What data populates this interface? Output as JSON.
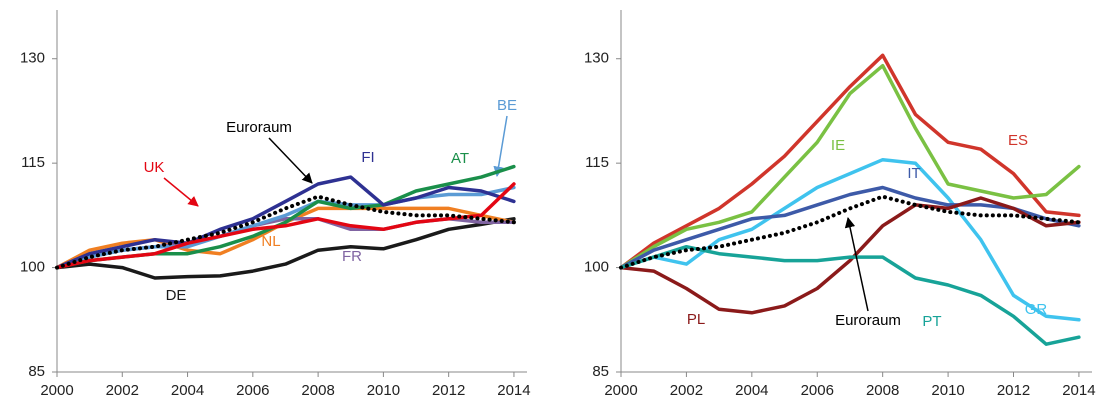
{
  "chart_data": [
    {
      "type": "line",
      "x": [
        2000,
        2001,
        2002,
        2003,
        2004,
        2005,
        2006,
        2007,
        2008,
        2009,
        2010,
        2011,
        2012,
        2013,
        2014
      ],
      "xlim": [
        2000,
        2014.4
      ],
      "ylim": [
        85,
        137
      ],
      "xticks": [
        2000,
        2002,
        2004,
        2006,
        2008,
        2010,
        2012,
        2014
      ],
      "yticks": [
        85,
        100,
        115,
        130
      ],
      "series": [
        {
          "name": "DE",
          "color": "#1a1a1a",
          "values": [
            100,
            100.5,
            100,
            98.5,
            98.7,
            98.8,
            99.5,
            100.5,
            102.5,
            103,
            102.7,
            104,
            105.5,
            106.2,
            107
          ]
        },
        {
          "name": "NL",
          "color": "#f07f22",
          "values": [
            100,
            102.5,
            103.5,
            104,
            102.5,
            102,
            104,
            106.5,
            108.5,
            108.5,
            108.5,
            108.5,
            108.5,
            107.5,
            106.5
          ]
        },
        {
          "name": "FR",
          "color": "#8064a2",
          "values": [
            100,
            101.5,
            102.5,
            103,
            103.5,
            104.5,
            106,
            107,
            107,
            105.5,
            105.5,
            106.5,
            107,
            106.5,
            106.5
          ]
        },
        {
          "name": "BE",
          "color": "#5b9bd5",
          "values": [
            100,
            101.5,
            102.5,
            103,
            103,
            104.5,
            106,
            107.5,
            109.5,
            109,
            109,
            110,
            110.5,
            110.5,
            111.5
          ]
        },
        {
          "name": "AT",
          "color": "#1a8f4a",
          "values": [
            100,
            101,
            101.5,
            102,
            102,
            103,
            104.5,
            106.5,
            109.5,
            108.5,
            109,
            111,
            112,
            113,
            114.5
          ]
        },
        {
          "name": "FI",
          "color": "#2e3192",
          "values": [
            100,
            102,
            103,
            104,
            103.5,
            105.5,
            107,
            109.5,
            112,
            113,
            109,
            110,
            111.5,
            111,
            109.5
          ]
        },
        {
          "name": "UK",
          "color": "#e30613",
          "values": [
            100,
            101,
            101.5,
            102,
            103.5,
            104.5,
            105.5,
            106,
            107,
            106,
            105.5,
            106.5,
            107,
            107.5,
            112
          ]
        },
        {
          "name": "Euroraum",
          "color": "#000000",
          "style": "dotted",
          "values": [
            100,
            101.5,
            102.5,
            103,
            104,
            105,
            106.5,
            108.5,
            110.2,
            109,
            108,
            107.5,
            107.5,
            107,
            106.5
          ]
        }
      ]
    },
    {
      "type": "line",
      "x": [
        2000,
        2001,
        2002,
        2003,
        2004,
        2005,
        2006,
        2007,
        2008,
        2009,
        2010,
        2011,
        2012,
        2013,
        2014
      ],
      "xlim": [
        2000,
        2014.4
      ],
      "ylim": [
        85,
        137
      ],
      "xticks": [
        2000,
        2002,
        2004,
        2006,
        2008,
        2010,
        2012,
        2014
      ],
      "yticks": [
        85,
        100,
        115,
        130
      ],
      "series": [
        {
          "name": "ES",
          "color": "#d0352b",
          "values": [
            100,
            103.5,
            106,
            108.5,
            112,
            116,
            121,
            126,
            130.5,
            122,
            118,
            117,
            113.5,
            108,
            107.5
          ]
        },
        {
          "name": "IE",
          "color": "#7ac143",
          "values": [
            100,
            103,
            105.5,
            106.5,
            108,
            113,
            118,
            125,
            129,
            120,
            112,
            111,
            110,
            110.5,
            114.5
          ]
        },
        {
          "name": "GR",
          "color": "#3fc3ee",
          "values": [
            100,
            101.5,
            100.5,
            104,
            105.5,
            108.5,
            111.5,
            113.5,
            115.5,
            115,
            110,
            104,
            96,
            93,
            92.5
          ]
        },
        {
          "name": "IT",
          "color": "#3d5aa8",
          "values": [
            100,
            102.5,
            104,
            105.5,
            107,
            107.5,
            109,
            110.5,
            111.5,
            110,
            109,
            109,
            108.5,
            107,
            106
          ]
        },
        {
          "name": "PL",
          "color": "#8b1a1a",
          "values": [
            100,
            99.5,
            97,
            94,
            93.5,
            94.5,
            97,
            101,
            106,
            109,
            108.5,
            110,
            108.5,
            106,
            106.5
          ]
        },
        {
          "name": "PT",
          "color": "#17a398",
          "values": [
            100,
            101.5,
            103,
            102,
            101.5,
            101,
            101,
            101.5,
            101.5,
            98.5,
            97.5,
            96,
            93,
            89,
            90
          ]
        },
        {
          "name": "Euroraum",
          "color": "#000000",
          "style": "dotted",
          "values": [
            100,
            101.5,
            102.5,
            103,
            104,
            105,
            106.5,
            108.5,
            110.2,
            109,
            108,
            107.5,
            107.5,
            107,
            106.5
          ]
        }
      ]
    }
  ]
}
